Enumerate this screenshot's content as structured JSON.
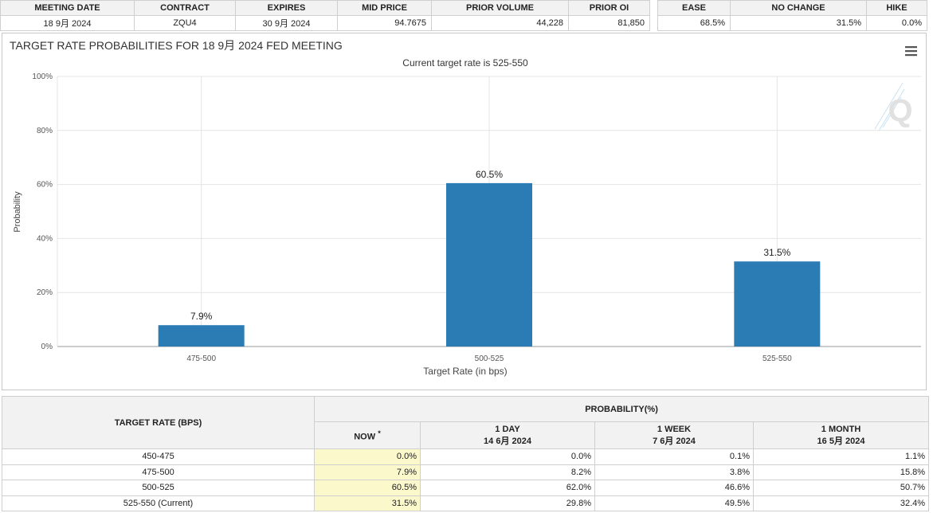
{
  "meeting_table": {
    "headers": [
      "MEETING DATE",
      "CONTRACT",
      "EXPIRES",
      "MID PRICE",
      "PRIOR VOLUME",
      "PRIOR OI"
    ],
    "values": [
      "18 9月 2024",
      "ZQU4",
      "30 9月 2024",
      "94.7675",
      "44,228",
      "81,850"
    ]
  },
  "summary_table": {
    "headers": [
      "EASE",
      "NO CHANGE",
      "HIKE"
    ],
    "values": [
      "68.5%",
      "31.5%",
      "0.0%"
    ]
  },
  "chart_title": "TARGET RATE PROBABILITIES FOR 18 9月 2024 FED MEETING",
  "chart_menu_icon": "hamburger-menu-icon",
  "watermark_icon": "q-logo-icon",
  "chart_data": {
    "type": "bar",
    "title": "TARGET RATE PROBABILITIES FOR 18 9月 2024 FED MEETING",
    "subtitle": "Current target rate is 525-550",
    "xlabel": "Target Rate (in bps)",
    "ylabel": "Probability",
    "ylim": [
      0,
      100
    ],
    "yticks": [
      0,
      20,
      40,
      60,
      80,
      100
    ],
    "ytick_labels": [
      "0%",
      "20%",
      "40%",
      "60%",
      "80%",
      "100%"
    ],
    "grid": true,
    "categories": [
      "475-500",
      "500-525",
      "525-550"
    ],
    "values": [
      7.9,
      60.5,
      31.5
    ],
    "data_labels": [
      "7.9%",
      "60.5%",
      "31.5%"
    ],
    "bar_color": "#2b7bb5"
  },
  "prob_table": {
    "header_rate": "TARGET RATE (BPS)",
    "header_prob": "PROBABILITY(%)",
    "columns": [
      {
        "line1": "NOW",
        "line2": "",
        "mark": "*"
      },
      {
        "line1": "1 DAY",
        "line2": "14 6月 2024"
      },
      {
        "line1": "1 WEEK",
        "line2": "7 6月 2024"
      },
      {
        "line1": "1 MONTH",
        "line2": "16 5月 2024"
      }
    ],
    "rows": [
      {
        "rate": "450-475",
        "values": [
          "0.0%",
          "0.0%",
          "0.1%",
          "1.1%"
        ]
      },
      {
        "rate": "475-500",
        "values": [
          "7.9%",
          "8.2%",
          "3.8%",
          "15.8%"
        ]
      },
      {
        "rate": "500-525",
        "values": [
          "60.5%",
          "62.0%",
          "46.6%",
          "50.7%"
        ]
      },
      {
        "rate": "525-550 (Current)",
        "values": [
          "31.5%",
          "29.8%",
          "49.5%",
          "32.4%"
        ]
      }
    ]
  },
  "colors": {
    "bar": "#2b7bb5",
    "now_highlight": "#fbf8cc",
    "header_bg": "#f2f2f2"
  }
}
